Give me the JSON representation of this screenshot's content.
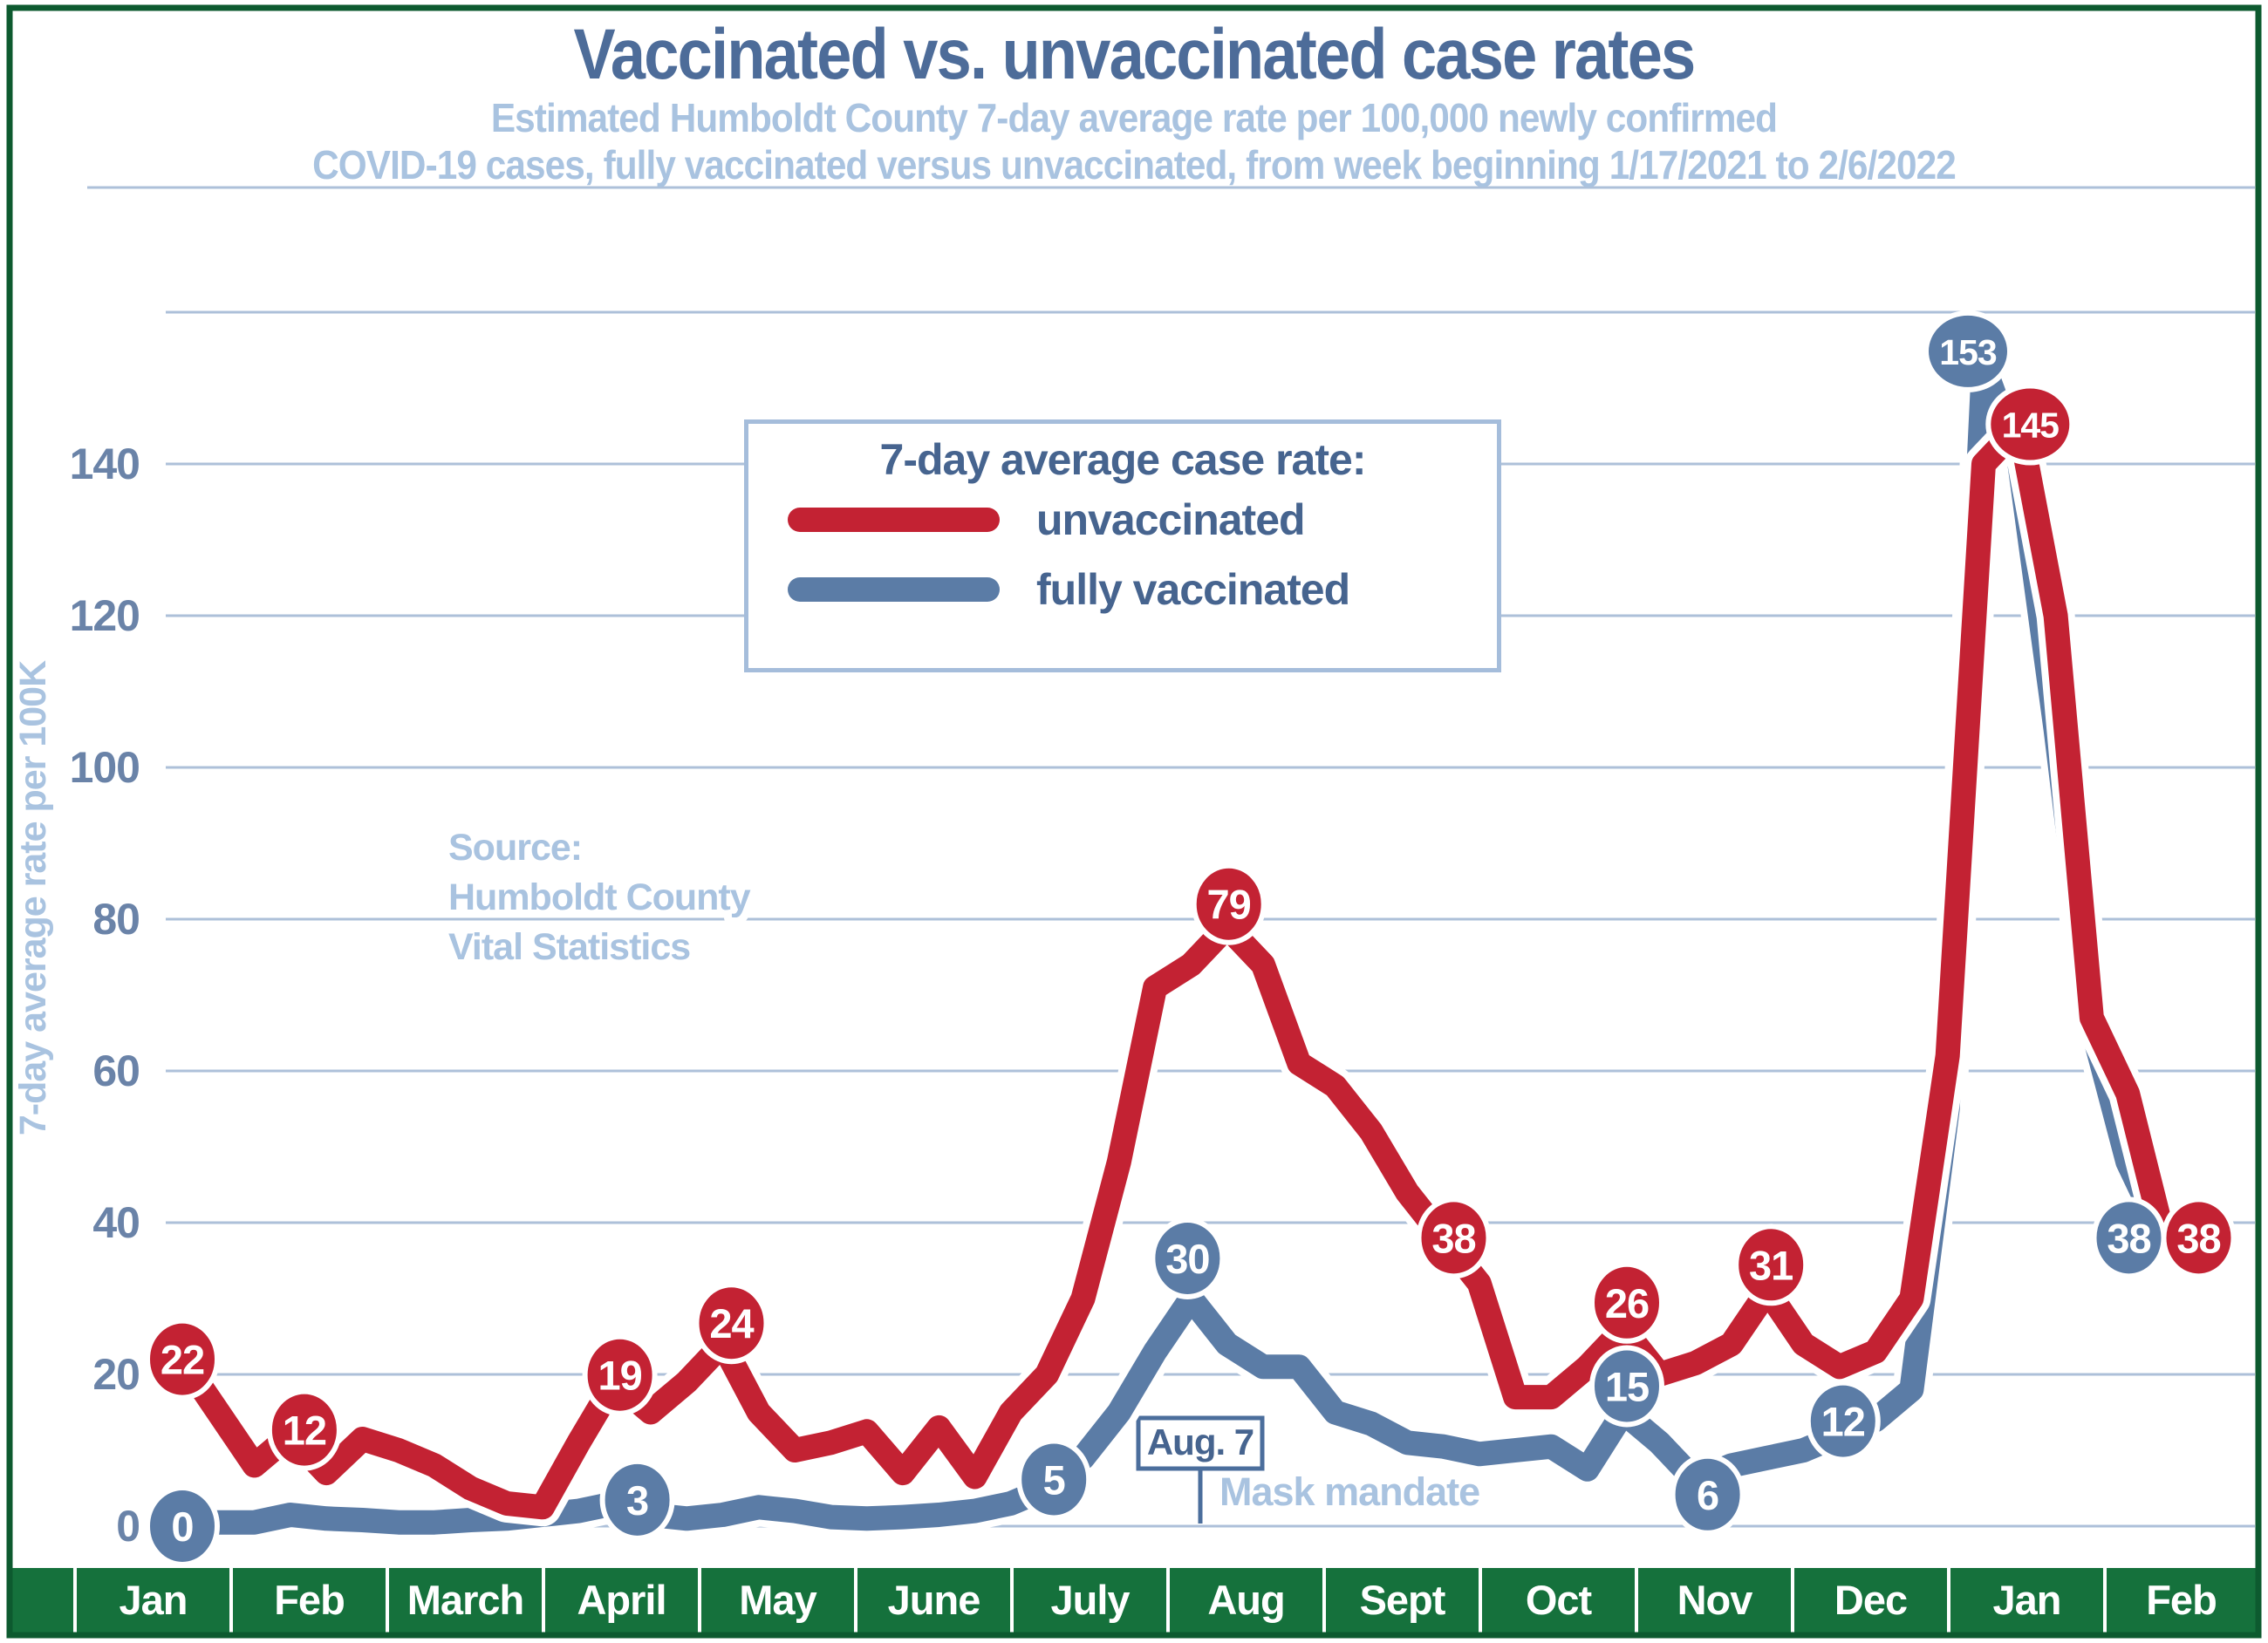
{
  "title": "Vaccinated vs. unvaccinated case rates",
  "subtitle_line1": "Estimated Humboldt County 7-day average rate per 100,000 newly confirmed",
  "subtitle_line2": "COVID-19 cases,  fully vaccinated versus unvaccinated, from week beginning 1/17/2021 to 2/6/2022",
  "legend": {
    "title": "7-day average case rate:",
    "items": [
      {
        "label": "unvaccinated",
        "color": "#c32233"
      },
      {
        "label": "fully vaccinated",
        "color": "#5b7ca6"
      }
    ]
  },
  "source": {
    "lines": [
      "Source:",
      "Humboldt County",
      "Vital Statistics"
    ]
  },
  "annotation": {
    "date": "Aug. 7",
    "label": "Mask mandate"
  },
  "y_axis": {
    "title": "7-day average rate per 100K",
    "ticks": [
      0,
      20,
      40,
      60,
      80,
      100,
      120,
      140
    ]
  },
  "colors": {
    "title_blue": "#4d6c99",
    "light_blue": "#a9c3e0",
    "tick_blue": "#6a83a8",
    "gridline": "#adc0d9",
    "red": "#c32233",
    "blue": "#5b7ca6",
    "green_band": "#15713c",
    "green_frame": "#0d5a2f",
    "legend_border": "#a5bddb",
    "annotation_border": "#4b6e9c"
  },
  "chart_data": {
    "type": "line",
    "title": "Vaccinated vs. unvaccinated case rates",
    "xlabel": "",
    "ylabel": "7-day average rate per 100K",
    "x_unit": "week",
    "x_range": "week beginning 1/17/2021 to 2/6/2022",
    "n_points": 56,
    "categories": [
      "Jan",
      "Feb",
      "March",
      "April",
      "May",
      "June",
      "July",
      "Aug",
      "Sept",
      "Oct",
      "Nov",
      "Dec",
      "Jan",
      "Feb"
    ],
    "ylim": [
      0,
      176
    ],
    "gridlines_every": 20,
    "gridline_max": 160,
    "grid": true,
    "legend_position": "top-center",
    "series": [
      {
        "name": "unvaccinated",
        "color": "#c32233",
        "values": [
          22,
          15,
          8,
          12,
          7,
          11.5,
          10,
          8,
          5,
          3,
          2.5,
          11,
          19,
          15,
          19,
          24,
          15,
          10,
          11,
          12.5,
          7,
          13,
          6.5,
          15,
          20,
          30,
          48,
          71,
          74,
          79,
          74,
          61,
          58,
          52,
          44,
          38,
          32,
          17,
          17,
          21,
          26,
          20,
          21.5,
          24,
          31,
          24,
          21,
          23,
          30,
          62,
          140,
          145,
          120,
          67,
          57,
          38
        ]
      },
      {
        "name": "fully vaccinated",
        "color": "#5b7ca6",
        "values": [
          0,
          0.5,
          0.5,
          1.5,
          1,
          0.8,
          0.5,
          0.5,
          0.8,
          1,
          1.5,
          2,
          3,
          1.5,
          1,
          1.5,
          2.5,
          2,
          1.2,
          1,
          1.2,
          1.5,
          2,
          3,
          5,
          9,
          15,
          23,
          30,
          24,
          21,
          21,
          15,
          13.5,
          11,
          10.5,
          9.5,
          10,
          10.5,
          7.5,
          15,
          11,
          6,
          8,
          9,
          10,
          12,
          14,
          18,
          55,
          153,
          140,
          105,
          66,
          48,
          38
        ]
      }
    ],
    "point_labels": [
      {
        "series": "unvaccinated",
        "index": 0,
        "value": 22
      },
      {
        "series": "unvaccinated",
        "index": 3,
        "value": 12
      },
      {
        "series": "unvaccinated",
        "index": 12,
        "value": 19
      },
      {
        "series": "unvaccinated",
        "index": 15,
        "value": 24
      },
      {
        "series": "unvaccinated",
        "index": 29,
        "value": 79
      },
      {
        "series": "unvaccinated",
        "index": 35,
        "value": 38
      },
      {
        "series": "unvaccinated",
        "index": 40,
        "value": 26
      },
      {
        "series": "unvaccinated",
        "index": 44,
        "value": 31
      },
      {
        "series": "unvaccinated",
        "index": 51,
        "value": 145
      },
      {
        "series": "unvaccinated",
        "index": 55,
        "value": 38
      },
      {
        "series": "fully vaccinated",
        "index": 0,
        "value": 0
      },
      {
        "series": "fully vaccinated",
        "index": 12,
        "value": 3
      },
      {
        "series": "fully vaccinated",
        "index": 24,
        "value": 5
      },
      {
        "series": "fully vaccinated",
        "index": 28,
        "value": 30
      },
      {
        "series": "fully vaccinated",
        "index": 40,
        "value": 15
      },
      {
        "series": "fully vaccinated",
        "index": 42,
        "value": 6
      },
      {
        "series": "fully vaccinated",
        "index": 46,
        "value": 12
      },
      {
        "series": "fully vaccinated",
        "index": 50,
        "value": 153
      },
      {
        "series": "fully vaccinated",
        "index": 55,
        "value": 38
      }
    ]
  }
}
